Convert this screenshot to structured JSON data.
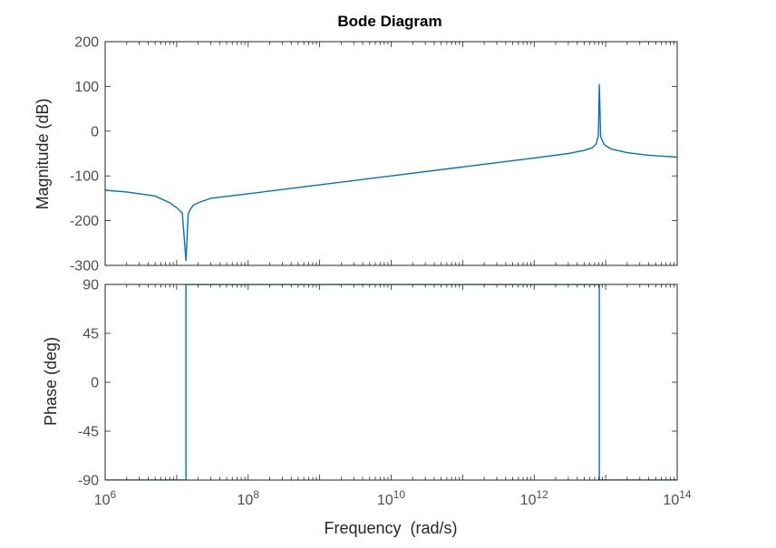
{
  "chart_data": {
    "type": "line",
    "title": "Bode Diagram",
    "xlabel": "Frequency  (rad/s)",
    "x_scale": "log",
    "xlim": [
      1000000,
      100000000000000
    ],
    "x_ticks": [
      {
        "value": 1000000,
        "base": "10",
        "exp": "6"
      },
      {
        "value": 100000000,
        "base": "10",
        "exp": "8"
      },
      {
        "value": 10000000000,
        "base": "10",
        "exp": "10"
      },
      {
        "value": 1000000000000,
        "base": "10",
        "exp": "12"
      },
      {
        "value": 100000000000000,
        "base": "10",
        "exp": "14"
      }
    ],
    "line_color": "#0072bd",
    "axis_color": "#262626",
    "tick_label_color": "#4d4d4d",
    "panels": [
      {
        "name": "magnitude",
        "ylabel": "Magnitude (dB)",
        "ylim": [
          -300,
          200
        ],
        "y_ticks": [
          200,
          100,
          0,
          -100,
          -200,
          -300
        ],
        "y_tick_labels": [
          "200",
          "100",
          "0",
          "-100",
          "-200",
          "-300"
        ],
        "series": [
          {
            "x": [
              1000000,
              2000000,
              5000000,
              8000000,
              10000000,
              12000000,
              13500000,
              14500000,
              15500000,
              17000000,
              20000000,
              30000000,
              100000000,
              1000000000,
              10000000000,
              100000000000,
              1000000000000,
              3000000000000,
              5000000000000,
              6500000000000,
              7400000000000,
              7900000000000,
              8150000000000,
              8500000000000,
              9500000000000,
              12000000000000,
              20000000000000,
              40000000000000,
              100000000000000
            ],
            "y": [
              -132,
              -136,
              -145,
              -160,
              -171,
              -183,
              -290,
              -185,
              -175,
              -166,
              -160,
              -150,
              -140,
              -120,
              -100,
              -80,
              -60,
              -50,
              -43,
              -37,
              -28,
              -10,
              105,
              -12,
              -30,
              -40,
              -48,
              -54,
              -58
            ]
          }
        ]
      },
      {
        "name": "phase",
        "ylabel": "Phase (deg)",
        "ylim": [
          -90,
          90
        ],
        "y_ticks": [
          90,
          45,
          0,
          -45,
          -90
        ],
        "y_tick_labels": [
          "90",
          "45",
          "0",
          "-45",
          "-90"
        ],
        "series": [
          {
            "x": [
              1000000,
              13500000,
              13500000,
              8150000000000,
              8150000000000,
              100000000000000
            ],
            "y": [
              -90,
              -90,
              90,
              90,
              -90,
              -90
            ]
          }
        ]
      }
    ]
  }
}
